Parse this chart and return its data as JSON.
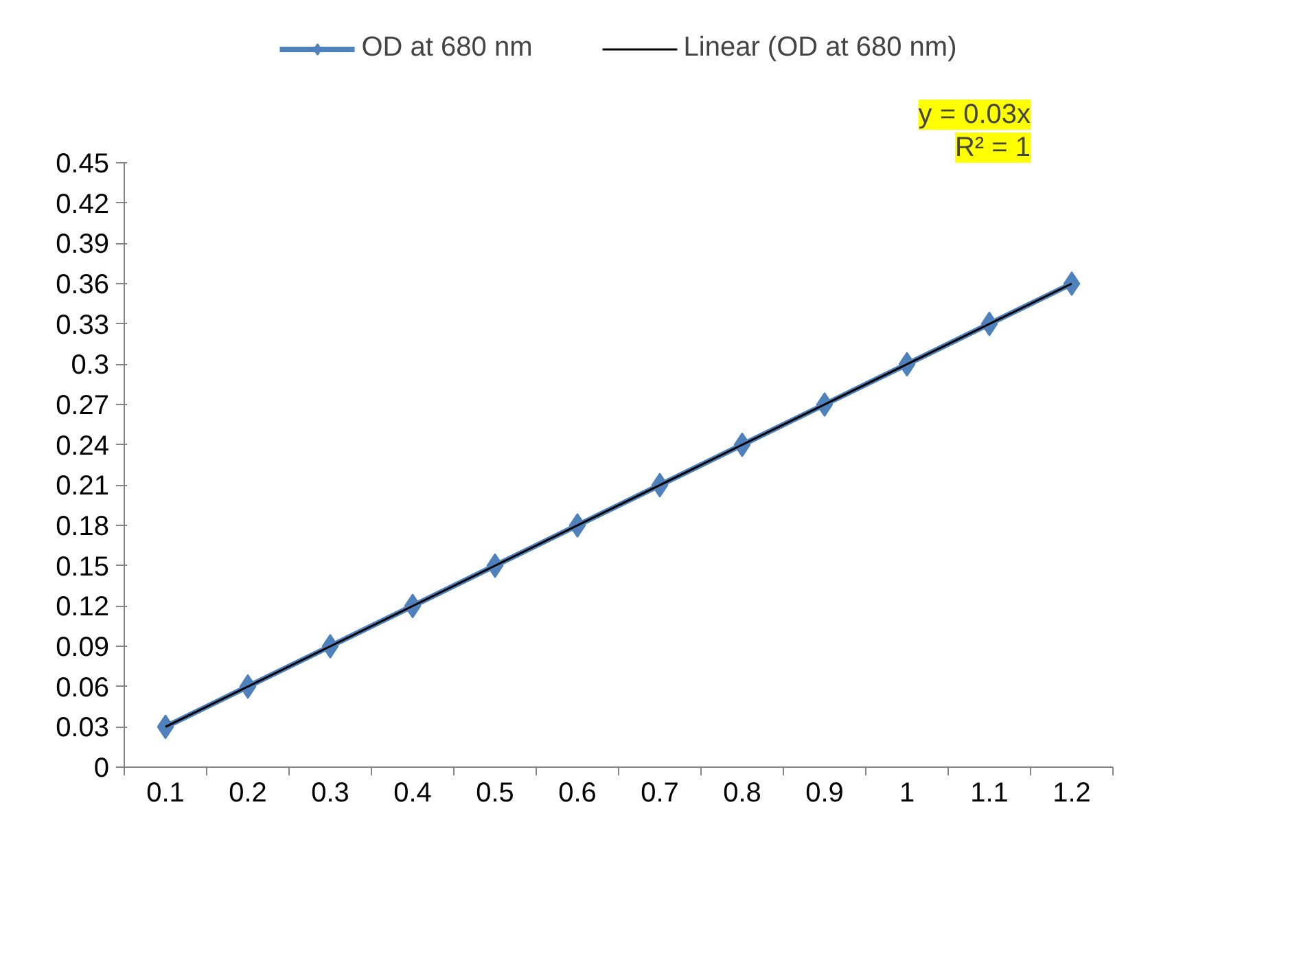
{
  "chart_data": {
    "type": "line",
    "categories": [
      "0.1",
      "0.2",
      "0.3",
      "0.4",
      "0.5",
      "0.6",
      "0.7",
      "0.8",
      "0.9",
      "1",
      "1.1",
      "1.2"
    ],
    "series": [
      {
        "name": "OD at 680 nm",
        "color": "#4f81bd",
        "values": [
          0.03,
          0.06,
          0.09,
          0.12,
          0.15,
          0.18,
          0.21,
          0.24,
          0.27,
          0.3,
          0.33,
          0.36
        ],
        "marker": "diamond"
      },
      {
        "name": "Linear (OD at 680 nm)",
        "type": "line",
        "color": "#000000",
        "x": [
          "0.1",
          "1.2"
        ],
        "values": [
          0.03,
          0.36
        ],
        "marker": "none"
      }
    ],
    "ylim": [
      0,
      0.45
    ],
    "yticks": [
      0,
      0.03,
      0.06,
      0.09,
      0.12,
      0.15,
      0.18,
      0.21,
      0.24,
      0.27,
      0.3,
      0.33,
      0.36,
      0.39,
      0.42,
      0.45
    ],
    "annotations": [
      "y = 0.03x",
      "R² = 1"
    ],
    "grid": false,
    "legend": "top",
    "line_style": "solid"
  }
}
